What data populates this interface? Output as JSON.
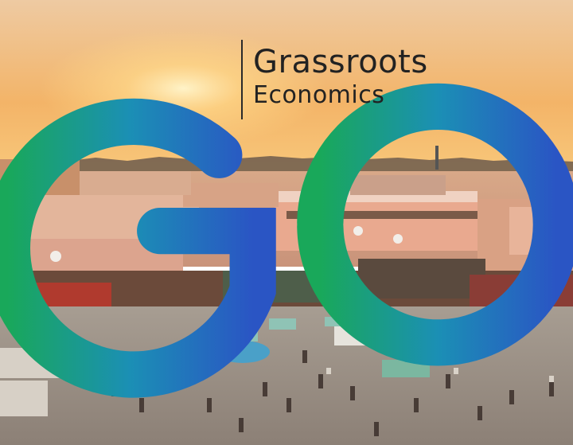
{
  "brand": {
    "name_line1": "Grassroots",
    "name_line2": "Economics",
    "logo_gradient": [
      "#19a85a",
      "#1b8fb5",
      "#2a55c4"
    ]
  },
  "photo": {
    "sky_top": "#f0c79a",
    "sky_horizon": "#f5b15f",
    "sun_glow": "#ffe6a0",
    "ground": "#9a8f86"
  }
}
